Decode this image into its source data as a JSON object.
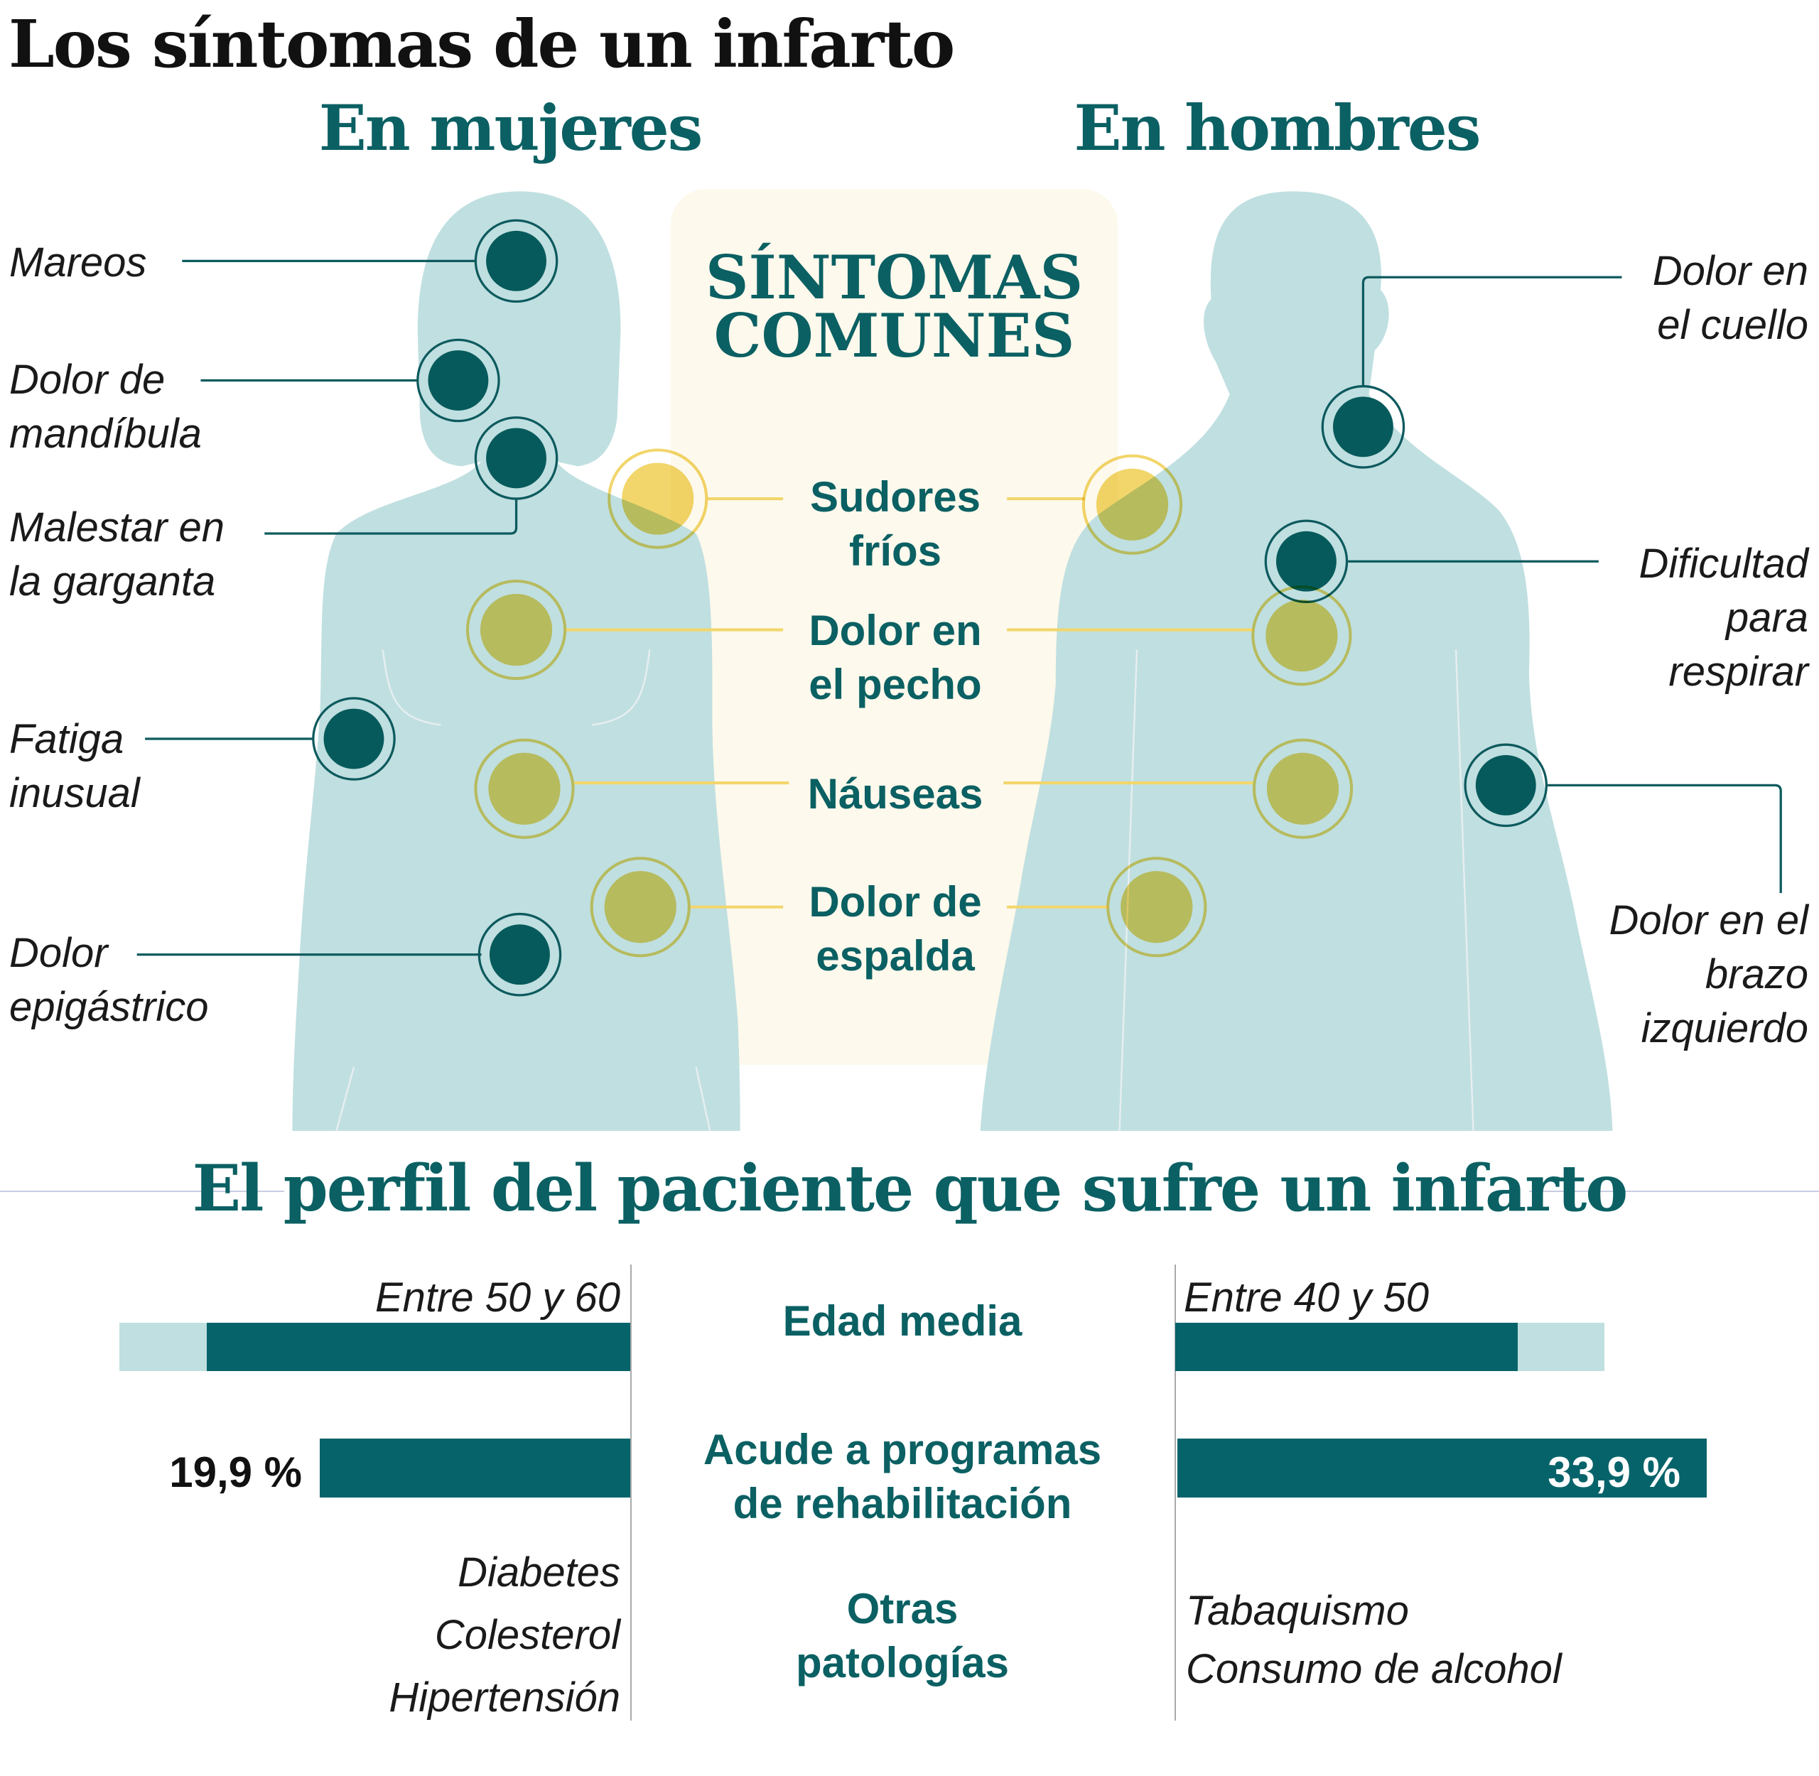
{
  "title": "Los síntomas de un infarto",
  "women_title": "En mujeres",
  "men_title": "En hombres",
  "colors": {
    "teal": "#07636a",
    "body": "#c0dfe0",
    "yellow": "#f2d66b",
    "common_box": "#fdf9ec"
  },
  "common": {
    "title_line1": "SÍNTOMAS",
    "title_line2": "COMUNES",
    "items": [
      {
        "line1": "Sudores",
        "line2": "fríos"
      },
      {
        "line1": "Dolor en",
        "line2": "el pecho"
      },
      {
        "line1": "Náuseas",
        "line2": ""
      },
      {
        "line1": "Dolor de",
        "line2": "espalda"
      }
    ]
  },
  "women_symptoms": [
    {
      "line1": "Mareos",
      "line2": ""
    },
    {
      "line1": "Dolor de",
      "line2": "mandíbula"
    },
    {
      "line1": "Malestar en",
      "line2": "la garganta"
    },
    {
      "line1": "Fatiga",
      "line2": "inusual"
    },
    {
      "line1": "Dolor",
      "line2": "epigástrico"
    }
  ],
  "men_symptoms": [
    {
      "line1": "Dolor en",
      "line2": "el cuello",
      "line3": ""
    },
    {
      "line1": "Dificultad",
      "line2": "para",
      "line3": "respirar"
    },
    {
      "line1": "Dolor en el",
      "line2": "brazo",
      "line3": "izquierdo"
    }
  ],
  "profile": {
    "title": "El perfil del paciente que sufre un infarto",
    "age": {
      "label": "Edad media",
      "women": "Entre 50 y 60",
      "men": "Entre 40 y 50"
    },
    "rehab": {
      "label_line1": "Acude a programas",
      "label_line2": "de rehabilitación",
      "women": "19,9 %",
      "men": "33,9 %",
      "women_value": 19.9,
      "men_value": 33.9
    },
    "other": {
      "label_line1": "Otras",
      "label_line2": "patologías",
      "women": [
        "Diabetes",
        "Colesterol",
        "Hipertensión"
      ],
      "men": [
        "Tabaquismo",
        "Consumo de alcohol"
      ]
    }
  }
}
